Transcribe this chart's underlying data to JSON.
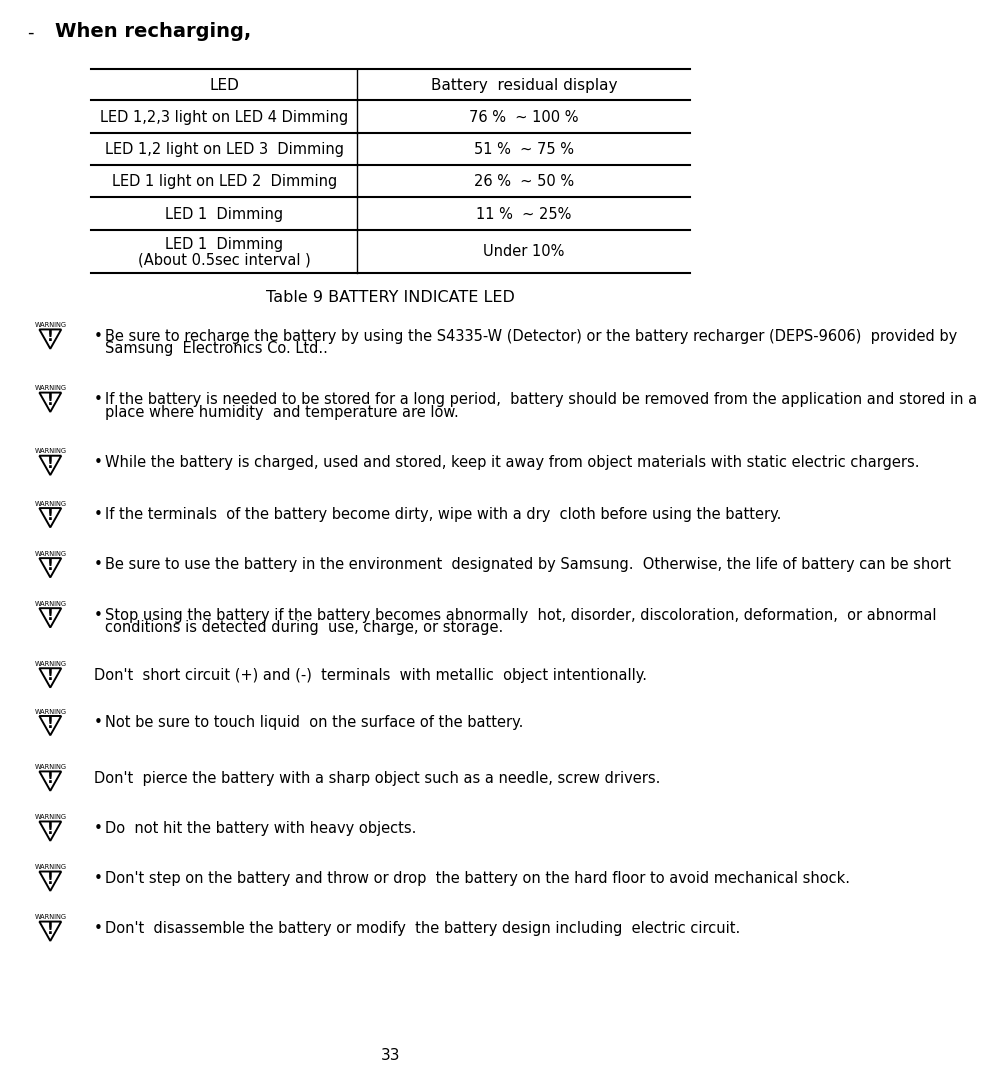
{
  "title_dash": "-",
  "title_text": "When recharging,",
  "table_headers": [
    "LED",
    "Battery  residual display"
  ],
  "table_rows": [
    [
      "LED 1,2,3 light on LED 4 Dimming",
      "76 %  ~ 100 %"
    ],
    [
      "LED 1,2 light on LED 3  Dimming",
      "51 %  ~ 75 %"
    ],
    [
      "LED 1 light on LED 2  Dimming",
      "26 %  ~ 50 %"
    ],
    [
      "LED 1  Dimming",
      "11 %  ~ 25%"
    ],
    [
      "LED 1  Dimming|||(About 0.5sec interval )",
      "Under 10%"
    ]
  ],
  "table_caption": "Table 9 BATTERY INDICATE LED",
  "warnings": [
    {
      "bullet": true,
      "text": "Be sure to recharge the battery by using the S4335-W (Detector) or the battery recharger (DEPS-9606)  provided by|||Samsung  Electronics Co. Ltd.."
    },
    {
      "bullet": true,
      "text": "If the battery is needed to be stored for a long period,  battery should be removed from the application and stored in a|||place where humidity  and temperature are low."
    },
    {
      "bullet": true,
      "text": "While the battery is charged, used and stored, keep it away from object materials with static electric chargers."
    },
    {
      "bullet": true,
      "text": "If the terminals  of the battery become dirty, wipe with a dry  cloth before using the battery."
    },
    {
      "bullet": true,
      "text": "Be sure to use the battery in the environment  designated by Samsung.  Otherwise, the life of battery can be short"
    },
    {
      "bullet": true,
      "text": "Stop using the battery if the battery becomes abnormally  hot, disorder, discoloration, deformation,  or abnormal|||conditions is detected during  use, charge, or storage."
    },
    {
      "bullet": false,
      "text": "Don't  short circuit (+) and (-)  terminals  with metallic  object intentionally."
    },
    {
      "bullet": true,
      "text": "Not be sure to touch liquid  on the surface of the battery."
    },
    {
      "bullet": false,
      "text": "Don't  pierce the battery with a sharp object such as a needle, screw drivers."
    },
    {
      "bullet": true,
      "text": "Do  not hit the battery with heavy objects."
    },
    {
      "bullet": true,
      "text": "Don't step on the battery and throw or drop  the battery on the hard floor to avoid mechanical shock."
    },
    {
      "bullet": true,
      "text": "Don't  disassemble the battery or modify  the battery design including  electric circuit."
    }
  ],
  "page_number": "33",
  "bg_color": "#ffffff",
  "text_color": "#000000"
}
